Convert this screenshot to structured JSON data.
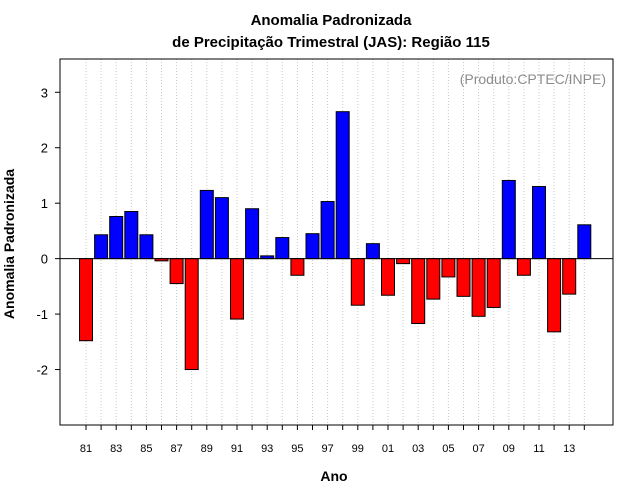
{
  "chart_data": {
    "type": "bar",
    "title": "Anomalia Padronizada",
    "subtitle": "de Precipitação Trimestral (JAS): Região 115",
    "xlabel": "Ano",
    "ylabel": "Anomalia Padronizada",
    "credit": "(Produto:CPTEC/INPE)",
    "ylim": [
      -3,
      3.6
    ],
    "yticks": [
      -2,
      -1,
      0,
      1,
      2,
      3
    ],
    "xtick_labels": [
      "81",
      "83",
      "85",
      "87",
      "89",
      "91",
      "93",
      "95",
      "97",
      "99",
      "01",
      "03",
      "05",
      "07",
      "09",
      "11",
      "13"
    ],
    "grid": "vertical dotted",
    "colors": {
      "positive": "#0000ff",
      "negative": "#ff0000",
      "grid": "#c8c8c8",
      "credit": "#8c8c8c"
    },
    "categories": [
      "1981",
      "1982",
      "1983",
      "1984",
      "1985",
      "1986",
      "1987",
      "1988",
      "1989",
      "1990",
      "1991",
      "1992",
      "1993",
      "1994",
      "1995",
      "1996",
      "1997",
      "1998",
      "1999",
      "2000",
      "2001",
      "2002",
      "2003",
      "2004",
      "2005",
      "2006",
      "2007",
      "2008",
      "2009",
      "2010",
      "2011",
      "2012",
      "2013",
      "2014"
    ],
    "values": [
      -1.48,
      0.43,
      0.76,
      0.85,
      0.43,
      -0.04,
      -0.45,
      -2.0,
      1.23,
      1.1,
      -1.09,
      0.9,
      0.05,
      0.38,
      -0.3,
      0.45,
      1.03,
      2.65,
      -0.84,
      0.27,
      -0.66,
      -0.09,
      -1.17,
      -0.73,
      -0.33,
      -0.68,
      -1.04,
      -0.88,
      1.41,
      -0.3,
      1.3,
      -1.32,
      -0.64,
      0.61
    ]
  }
}
